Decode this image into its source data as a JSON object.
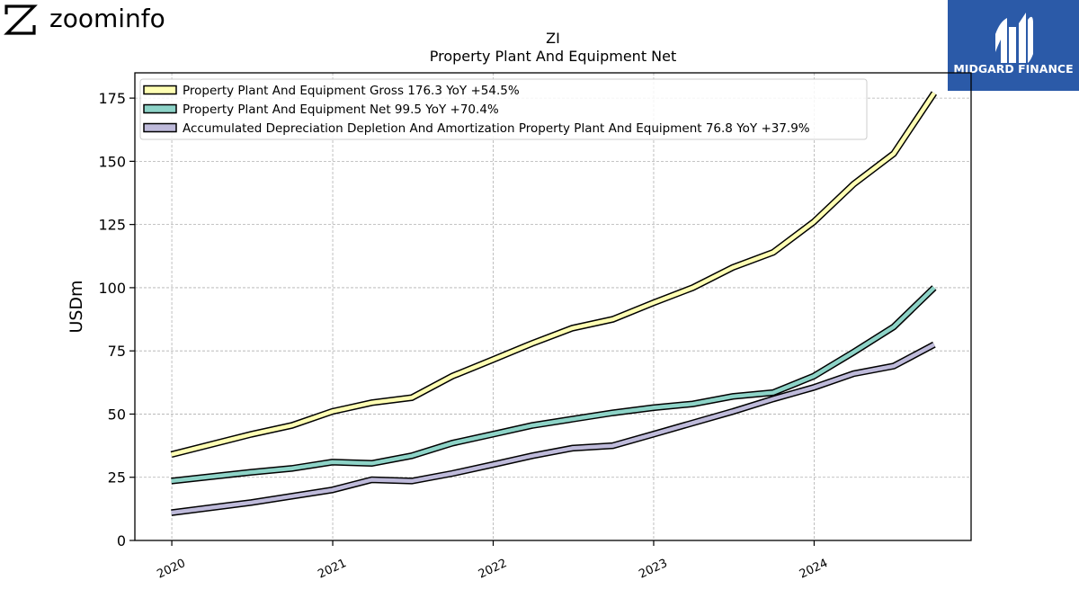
{
  "branding": {
    "zoominfo_label": "zoominfo",
    "midgard_label": "MIDGARD FINANCE",
    "midgard_bg": "#2b5aa8"
  },
  "chart_data": {
    "type": "line",
    "title": "ZI",
    "subtitle": "Property Plant And Equipment Net",
    "ylabel": "USDm",
    "xlabel": "",
    "ylim": [
      0,
      185
    ],
    "yticks": [
      0,
      25,
      50,
      75,
      100,
      125,
      150,
      175
    ],
    "xlim": [
      "2019-10-09",
      "2024-12-23"
    ],
    "xticks": [
      "2020",
      "2021",
      "2022",
      "2023",
      "2024"
    ],
    "grid": true,
    "legend_position": "top-left",
    "x": [
      "2019-12-31",
      "2020-06-30",
      "2020-09-30",
      "2020-12-31",
      "2021-03-31",
      "2021-06-30",
      "2021-09-30",
      "2021-12-31",
      "2022-03-31",
      "2022-06-30",
      "2022-09-30",
      "2022-12-31",
      "2023-03-31",
      "2023-06-30",
      "2023-09-30",
      "2023-12-31",
      "2024-03-31",
      "2024-06-30",
      "2024-09-30"
    ],
    "series": [
      {
        "name": "Property Plant And Equipment Gross  176.3 YoY +54.5%",
        "color": "#ffffb3",
        "values": [
          34,
          42,
          45.5,
          51,
          54.5,
          56.5,
          65,
          71.5,
          78,
          84,
          87.5,
          94,
          100,
          108,
          114,
          126,
          141,
          153,
          177
        ]
      },
      {
        "name": "Property Plant And Equipment Net  99.5 YoY +70.4%",
        "color": "#8dd3c7",
        "values": [
          23.5,
          27,
          28.5,
          31,
          30.5,
          33.5,
          38.5,
          42,
          45.5,
          48,
          50.5,
          52.5,
          54,
          57,
          58.5,
          65,
          74.5,
          84.5,
          100
        ]
      },
      {
        "name": "Accumulated Depreciation Depletion And Amortization Property Plant And Equipment  76.8 YoY +37.9%",
        "color": "#bebada",
        "values": [
          11,
          15,
          17.5,
          20,
          24,
          23.5,
          26.5,
          30,
          33.5,
          36.5,
          37.5,
          42,
          46.5,
          51,
          56,
          60.5,
          66,
          69,
          77.5
        ]
      }
    ]
  }
}
